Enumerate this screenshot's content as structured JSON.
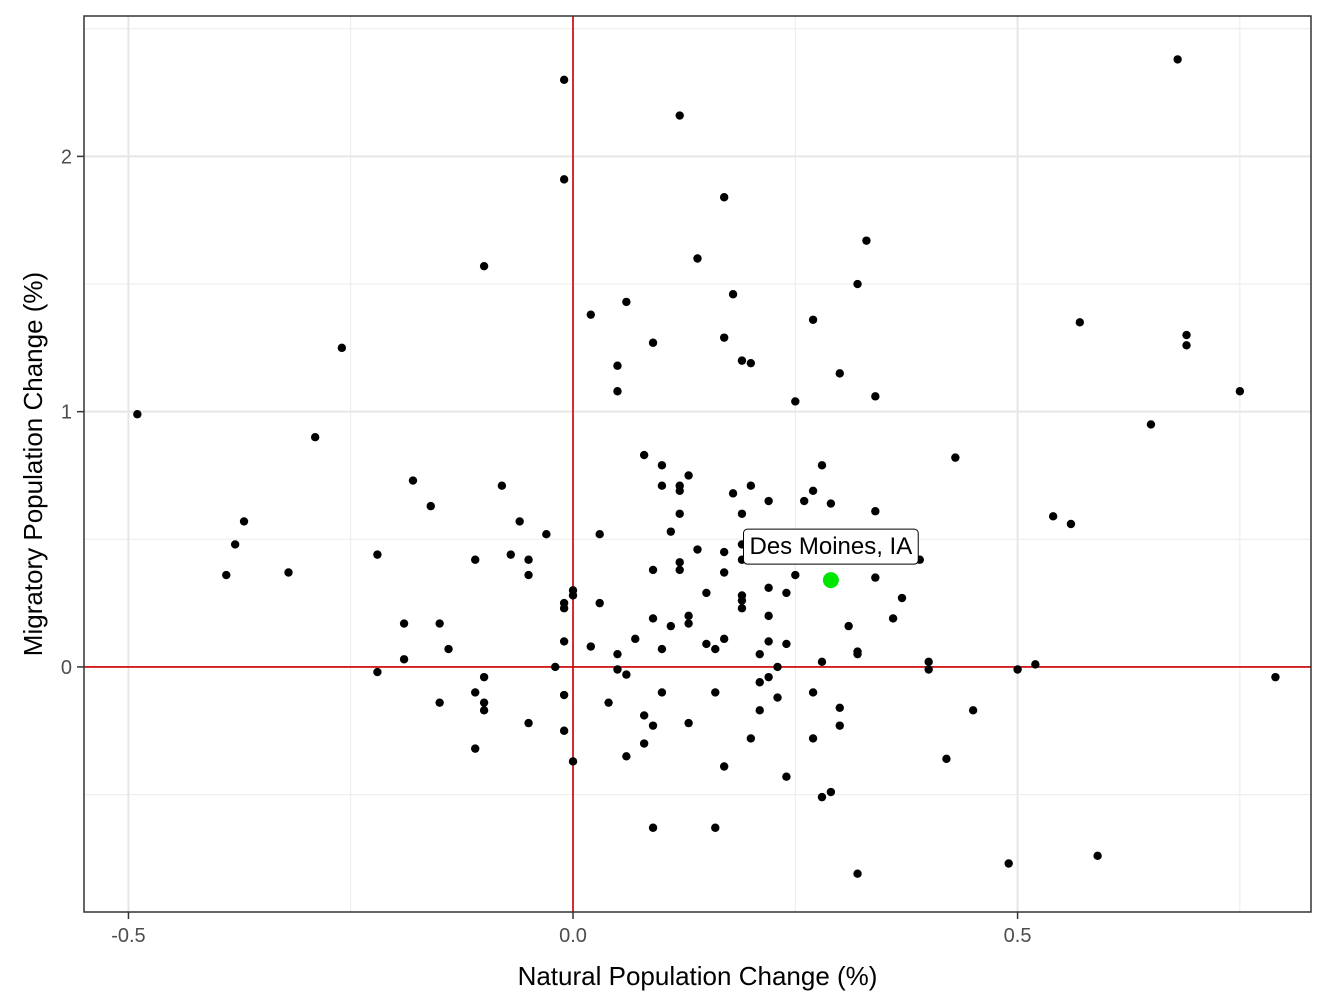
{
  "chart_data": {
    "type": "scatter",
    "title": "",
    "xlabel": "Natural Population Change (%)",
    "ylabel": "Migratory Population Change (%)",
    "xlim": [
      -0.55,
      0.83
    ],
    "ylim": [
      -0.96,
      2.55
    ],
    "x_ticks": [
      -0.5,
      0.0,
      0.5
    ],
    "x_tick_labels": [
      "-0.5",
      "0.0",
      "0.5"
    ],
    "y_ticks": [
      0,
      1,
      2
    ],
    "y_tick_labels": [
      "0",
      "1",
      "2"
    ],
    "grid": true,
    "reference_lines": {
      "x": 0,
      "y": 0,
      "color": "#d00000"
    },
    "point_color": "#000000",
    "highlight_color": "#00e600",
    "highlight": {
      "label": "Des Moines, IA",
      "x": 0.29,
      "y": 0.34
    },
    "points": [
      [
        -0.49,
        0.99
      ],
      [
        -0.39,
        0.36
      ],
      [
        -0.37,
        0.57
      ],
      [
        -0.38,
        0.48
      ],
      [
        -0.32,
        0.37
      ],
      [
        -0.29,
        0.9
      ],
      [
        -0.26,
        1.25
      ],
      [
        -0.22,
        0.44
      ],
      [
        -0.22,
        -0.02
      ],
      [
        -0.19,
        0.17
      ],
      [
        -0.19,
        0.03
      ],
      [
        -0.18,
        0.73
      ],
      [
        -0.16,
        0.63
      ],
      [
        -0.15,
        0.17
      ],
      [
        -0.14,
        0.07
      ],
      [
        -0.15,
        -0.14
      ],
      [
        -0.1,
        1.57
      ],
      [
        -0.11,
        0.42
      ],
      [
        -0.11,
        -0.1
      ],
      [
        -0.1,
        -0.04
      ],
      [
        -0.1,
        -0.14
      ],
      [
        -0.1,
        -0.17
      ],
      [
        -0.11,
        -0.32
      ],
      [
        -0.08,
        0.71
      ],
      [
        -0.07,
        0.44
      ],
      [
        -0.06,
        0.57
      ],
      [
        -0.05,
        0.42
      ],
      [
        -0.05,
        0.36
      ],
      [
        -0.05,
        -0.22
      ],
      [
        -0.03,
        0.52
      ],
      [
        -0.02,
        0.0
      ],
      [
        -0.01,
        2.3
      ],
      [
        -0.01,
        1.91
      ],
      [
        -0.01,
        0.25
      ],
      [
        -0.01,
        0.23
      ],
      [
        -0.01,
        0.1
      ],
      [
        -0.01,
        -0.11
      ],
      [
        -0.01,
        -0.25
      ],
      [
        0.0,
        0.3
      ],
      [
        0.0,
        0.28
      ],
      [
        0.0,
        -0.37
      ],
      [
        0.02,
        1.38
      ],
      [
        0.02,
        0.08
      ],
      [
        0.03,
        0.52
      ],
      [
        0.03,
        0.25
      ],
      [
        0.04,
        -0.14
      ],
      [
        0.05,
        1.18
      ],
      [
        0.05,
        1.08
      ],
      [
        0.05,
        0.05
      ],
      [
        0.05,
        -0.01
      ],
      [
        0.06,
        1.43
      ],
      [
        0.06,
        -0.03
      ],
      [
        0.06,
        -0.35
      ],
      [
        0.07,
        0.11
      ],
      [
        0.08,
        0.83
      ],
      [
        0.08,
        -0.19
      ],
      [
        0.08,
        -0.3
      ],
      [
        0.09,
        1.27
      ],
      [
        0.09,
        0.38
      ],
      [
        0.09,
        0.19
      ],
      [
        0.09,
        -0.23
      ],
      [
        0.09,
        -0.63
      ],
      [
        0.1,
        0.79
      ],
      [
        0.1,
        0.71
      ],
      [
        0.1,
        0.07
      ],
      [
        0.1,
        -0.1
      ],
      [
        0.11,
        0.53
      ],
      [
        0.11,
        0.16
      ],
      [
        0.12,
        2.16
      ],
      [
        0.12,
        0.71
      ],
      [
        0.12,
        0.69
      ],
      [
        0.12,
        0.6
      ],
      [
        0.12,
        0.41
      ],
      [
        0.12,
        0.38
      ],
      [
        0.13,
        0.75
      ],
      [
        0.13,
        0.2
      ],
      [
        0.13,
        0.17
      ],
      [
        0.13,
        -0.22
      ],
      [
        0.14,
        1.6
      ],
      [
        0.14,
        0.46
      ],
      [
        0.15,
        0.29
      ],
      [
        0.15,
        0.09
      ],
      [
        0.16,
        0.07
      ],
      [
        0.16,
        -0.1
      ],
      [
        0.16,
        -0.63
      ],
      [
        0.17,
        1.84
      ],
      [
        0.17,
        1.29
      ],
      [
        0.17,
        0.45
      ],
      [
        0.17,
        0.37
      ],
      [
        0.17,
        0.11
      ],
      [
        0.17,
        -0.39
      ],
      [
        0.18,
        1.46
      ],
      [
        0.18,
        0.68
      ],
      [
        0.19,
        1.2
      ],
      [
        0.19,
        0.6
      ],
      [
        0.19,
        0.48
      ],
      [
        0.19,
        0.42
      ],
      [
        0.19,
        0.28
      ],
      [
        0.19,
        0.26
      ],
      [
        0.19,
        0.23
      ],
      [
        0.2,
        1.19
      ],
      [
        0.2,
        0.71
      ],
      [
        0.2,
        -0.28
      ],
      [
        0.21,
        0.05
      ],
      [
        0.21,
        -0.06
      ],
      [
        0.21,
        -0.17
      ],
      [
        0.22,
        0.65
      ],
      [
        0.22,
        0.31
      ],
      [
        0.22,
        0.2
      ],
      [
        0.22,
        0.1
      ],
      [
        0.22,
        -0.04
      ],
      [
        0.23,
        0.0
      ],
      [
        0.23,
        -0.12
      ],
      [
        0.24,
        0.29
      ],
      [
        0.24,
        0.09
      ],
      [
        0.24,
        -0.43
      ],
      [
        0.25,
        1.04
      ],
      [
        0.25,
        0.36
      ],
      [
        0.26,
        0.65
      ],
      [
        0.27,
        1.36
      ],
      [
        0.27,
        0.69
      ],
      [
        0.27,
        -0.1
      ],
      [
        0.27,
        -0.28
      ],
      [
        0.28,
        0.79
      ],
      [
        0.28,
        0.02
      ],
      [
        0.28,
        -0.51
      ],
      [
        0.29,
        0.64
      ],
      [
        0.29,
        -0.49
      ],
      [
        0.3,
        1.15
      ],
      [
        0.3,
        -0.16
      ],
      [
        0.3,
        -0.23
      ],
      [
        0.31,
        0.16
      ],
      [
        0.32,
        1.5
      ],
      [
        0.32,
        0.06
      ],
      [
        0.32,
        0.05
      ],
      [
        0.32,
        -0.81
      ],
      [
        0.33,
        1.67
      ],
      [
        0.34,
        1.06
      ],
      [
        0.34,
        0.61
      ],
      [
        0.34,
        0.35
      ],
      [
        0.36,
        0.19
      ],
      [
        0.37,
        0.27
      ],
      [
        0.39,
        0.42
      ],
      [
        0.4,
        0.02
      ],
      [
        0.4,
        -0.01
      ],
      [
        0.42,
        -0.36
      ],
      [
        0.43,
        0.82
      ],
      [
        0.45,
        -0.17
      ],
      [
        0.49,
        -0.77
      ],
      [
        0.5,
        -0.01
      ],
      [
        0.52,
        0.01
      ],
      [
        0.54,
        0.59
      ],
      [
        0.56,
        0.56
      ],
      [
        0.57,
        1.35
      ],
      [
        0.59,
        -0.74
      ],
      [
        0.65,
        0.95
      ],
      [
        0.68,
        2.38
      ],
      [
        0.69,
        1.3
      ],
      [
        0.69,
        1.26
      ],
      [
        0.75,
        1.08
      ],
      [
        0.79,
        -0.04
      ]
    ]
  }
}
